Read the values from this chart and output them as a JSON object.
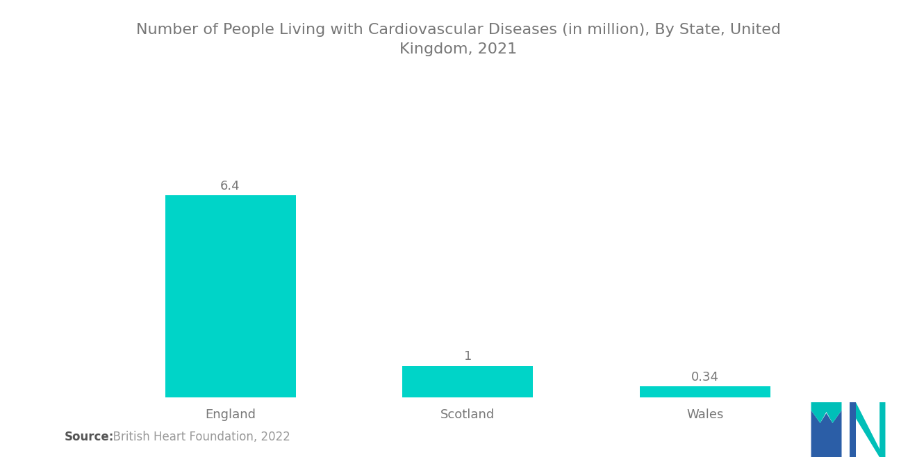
{
  "title_line1": "Number of People Living with Cardiovascular Diseases (in million), By State, United",
  "title_line2": "Kingdom, 2021",
  "categories": [
    "England",
    "Scotland",
    "Wales"
  ],
  "values": [
    6.4,
    1.0,
    0.34
  ],
  "bar_color": "#00D4C8",
  "value_labels": [
    "6.4",
    "1",
    "0.34"
  ],
  "title_color": "#777777",
  "label_color": "#777777",
  "value_color": "#777777",
  "source_bold": "Source:",
  "source_rest": "  British Heart Foundation, 2022",
  "source_color_bold": "#555555",
  "source_color_rest": "#999999",
  "background_color": "#ffffff",
  "title_fontsize": 16,
  "label_fontsize": 13,
  "value_fontsize": 13,
  "source_fontsize": 12,
  "ylim": [
    0,
    8.5
  ],
  "bar_width": 0.55,
  "logo_blue": "#2B5EA7",
  "logo_teal": "#00BFB8"
}
